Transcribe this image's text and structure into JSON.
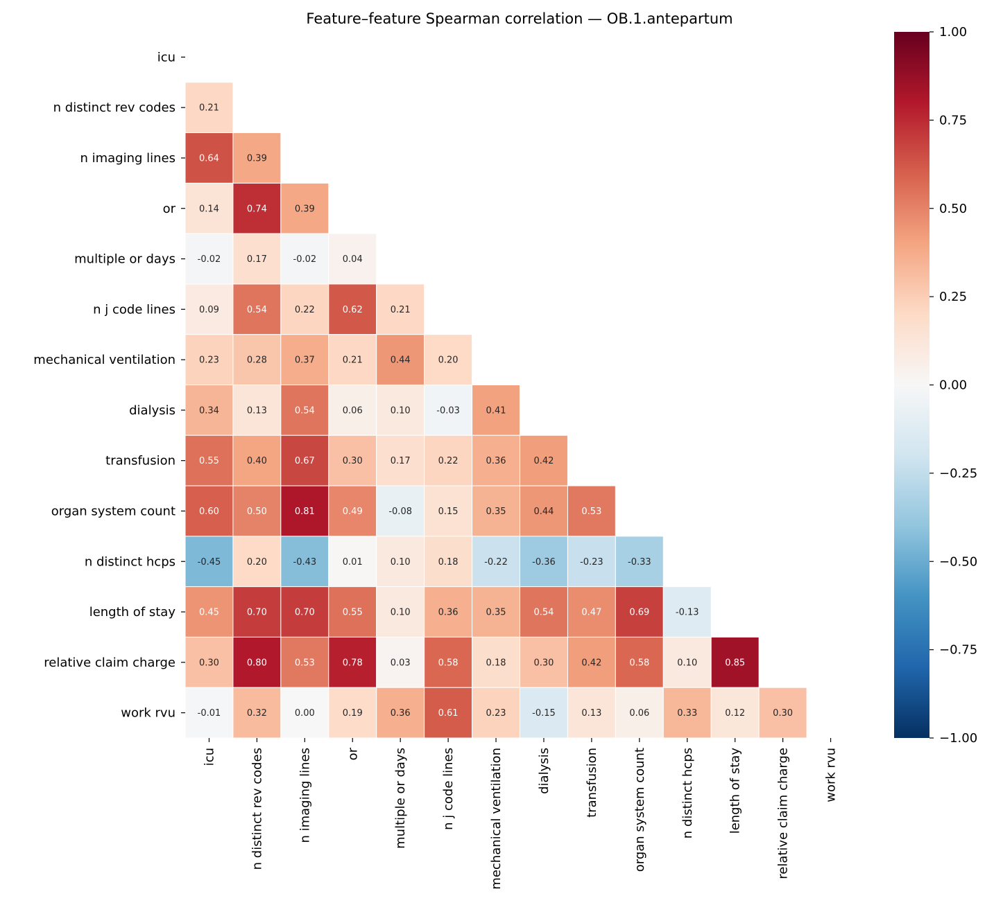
{
  "chart_data": {
    "type": "heatmap",
    "title": "Feature–feature Spearman correlation — OB.1.antepartum",
    "labels": [
      "icu",
      "n distinct rev codes",
      "n imaging lines",
      "or",
      "multiple or days",
      "n j code lines",
      "mechanical ventilation",
      "dialysis",
      "transfusion",
      "organ system count",
      "n distinct hcps",
      "length of stay",
      "relative claim charge",
      "work rvu"
    ],
    "mask": "upper triangle including diagonal",
    "lower_triangle": [
      [],
      [
        0.21
      ],
      [
        0.64,
        0.39
      ],
      [
        0.14,
        0.74,
        0.39
      ],
      [
        -0.02,
        0.17,
        -0.02,
        0.04
      ],
      [
        0.09,
        0.54,
        0.22,
        0.62,
        0.21
      ],
      [
        0.23,
        0.28,
        0.37,
        0.21,
        0.44,
        0.2
      ],
      [
        0.34,
        0.13,
        0.54,
        0.06,
        0.1,
        -0.03,
        0.41
      ],
      [
        0.55,
        0.4,
        0.67,
        0.3,
        0.17,
        0.22,
        0.36,
        0.42
      ],
      [
        0.6,
        0.5,
        0.81,
        0.49,
        -0.08,
        0.15,
        0.35,
        0.44,
        0.53
      ],
      [
        -0.45,
        0.2,
        -0.43,
        0.01,
        0.1,
        0.18,
        -0.22,
        -0.36,
        -0.23,
        -0.33
      ],
      [
        0.45,
        0.7,
        0.7,
        0.55,
        0.1,
        0.36,
        0.35,
        0.54,
        0.47,
        0.69,
        -0.13
      ],
      [
        0.3,
        0.8,
        0.53,
        0.78,
        0.03,
        0.58,
        0.18,
        0.3,
        0.42,
        0.58,
        0.1,
        0.85
      ],
      [
        -0.01,
        0.32,
        -0.0,
        0.19,
        0.36,
        0.61,
        0.23,
        -0.15,
        0.13,
        0.06,
        0.33,
        0.12,
        0.3
      ]
    ],
    "colormap": "RdBu_r",
    "colormap_stops": [
      "#053061",
      "#2166ac",
      "#4393c3",
      "#92c5de",
      "#d1e5f0",
      "#f7f7f7",
      "#fddbc7",
      "#f4a582",
      "#d6604d",
      "#b2182b",
      "#67001f"
    ],
    "vmin": -1.0,
    "vmax": 1.0,
    "colorbar_ticks": [
      "1.00",
      "0.75",
      "0.50",
      "0.25",
      "0.00",
      "−0.25",
      "−0.50",
      "−0.75",
      "−1.00"
    ],
    "colorbar_tick_values": [
      1.0,
      0.75,
      0.5,
      0.25,
      0.0,
      -0.25,
      -0.5,
      -0.75,
      -1.0
    ]
  }
}
